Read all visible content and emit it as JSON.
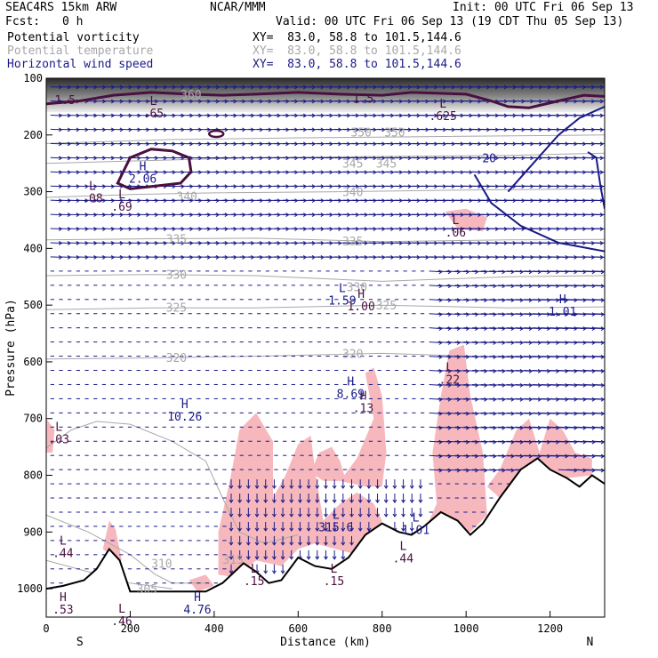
{
  "header": {
    "model": "SEAC4RS 15km ARW",
    "org": "NCAR/MMM",
    "init": "Init: 00 UTC Fri 06 Sep 13",
    "fcst_label": "Fcst:",
    "fcst_value": "0 h",
    "valid": "Valid: 00 UTC Fri 06 Sep 13 (19 CDT Thu 05 Sep 13)",
    "fields": [
      {
        "name": "Potential vorticity",
        "xy": "XY=  83.0, 58.8 to 101.5,144.6",
        "color": "#000000"
      },
      {
        "name": "Potential temperature",
        "xy": "XY=  83.0, 58.8 to 101.5,144.6",
        "color": "#a8a8a8"
      },
      {
        "name": "Horizontal wind speed",
        "xy": "XY=  83.0, 58.8 to 101.5,144.6",
        "color": "#1a1a8a"
      }
    ]
  },
  "chart_data": {
    "type": "cross-section",
    "xlabel": "Distance (km)",
    "ylabel": "Pressure (hPa)",
    "xlim": [
      0,
      1330
    ],
    "ylim_hpa": [
      1050,
      100
    ],
    "x_ticks": [
      0,
      200,
      400,
      600,
      800,
      1000,
      1200
    ],
    "y_ticks": [
      100,
      200,
      300,
      400,
      500,
      600,
      700,
      800,
      900,
      1000
    ],
    "x_end_labels": {
      "left": "S",
      "right": "N"
    },
    "colors": {
      "pv": "#4a1040",
      "theta": "#a8a8a8",
      "wind": "#1a1a8a",
      "shade": "#f6b8bc",
      "terrain": "#000000"
    },
    "theta_levels": [
      305,
      310,
      315,
      320,
      325,
      330,
      335,
      340,
      345,
      350
    ],
    "theta_labels": [
      {
        "text": "360",
        "x": 345,
        "p": 128
      },
      {
        "text": "350",
        "x": 750,
        "p": 195
      },
      {
        "text": "350",
        "x": 830,
        "p": 195
      },
      {
        "text": "345",
        "x": 730,
        "p": 250
      },
      {
        "text": "345",
        "x": 810,
        "p": 250
      },
      {
        "text": "340",
        "x": 335,
        "p": 308
      },
      {
        "text": "340",
        "x": 730,
        "p": 300
      },
      {
        "text": "335",
        "x": 310,
        "p": 383
      },
      {
        "text": "335",
        "x": 730,
        "p": 387
      },
      {
        "text": "330",
        "x": 310,
        "p": 446
      },
      {
        "text": "330",
        "x": 740,
        "p": 468
      },
      {
        "text": "325",
        "x": 310,
        "p": 504
      },
      {
        "text": "325",
        "x": 810,
        "p": 500
      },
      {
        "text": "320",
        "x": 310,
        "p": 592
      },
      {
        "text": "320",
        "x": 730,
        "p": 585
      },
      {
        "text": "315",
        "x": 445,
        "p": 948
      },
      {
        "text": "310",
        "x": 275,
        "p": 955
      },
      {
        "text": "305",
        "x": 240,
        "p": 1000
      }
    ],
    "pv_labels": [
      {
        "text": "1.5",
        "x": 45,
        "p": 138
      },
      {
        "text": "1.5",
        "x": 755,
        "p": 135
      },
      {
        "text": "20",
        "x": 1055,
        "p": 240
      }
    ],
    "extrema": [
      {
        "type": "L",
        "value": ".65",
        "x": 255,
        "p": 150
      },
      {
        "type": "H",
        "value": "2.06",
        "x": 230,
        "p": 265
      },
      {
        "type": "L",
        "value": ".08",
        "x": 110,
        "p": 300
      },
      {
        "type": "L",
        "value": ".69",
        "x": 180,
        "p": 315
      },
      {
        "type": "L",
        "value": ".625",
        "x": 945,
        "p": 155
      },
      {
        "type": "L",
        "value": ".06",
        "x": 975,
        "p": 360
      },
      {
        "type": "L",
        "value": "1.59",
        "x": 705,
        "p": 480
      },
      {
        "type": "H",
        "value": "1.00",
        "x": 750,
        "p": 490
      },
      {
        "type": "H",
        "value": "1.01",
        "x": 1230,
        "p": 500
      },
      {
        "type": "H",
        "value": "8.69",
        "x": 725,
        "p": 645
      },
      {
        "type": "H",
        "value": ".13",
        "x": 755,
        "p": 670
      },
      {
        "type": "L",
        "value": ".22",
        "x": 960,
        "p": 620
      },
      {
        "type": "H",
        "value": "10.26",
        "x": 330,
        "p": 685
      },
      {
        "type": "L",
        "value": ".03",
        "x": 30,
        "p": 725
      },
      {
        "type": "L",
        "value": "315.6",
        "x": 690,
        "p": 880
      },
      {
        "type": "L",
        "value": "1.01",
        "x": 880,
        "p": 885
      },
      {
        "type": "L",
        "value": ".44",
        "x": 40,
        "p": 925
      },
      {
        "type": "L",
        "value": ".44",
        "x": 850,
        "p": 935
      },
      {
        "type": "L",
        "value": ".15",
        "x": 495,
        "p": 975
      },
      {
        "type": "L",
        "value": ".15",
        "x": 685,
        "p": 975
      },
      {
        "type": "H",
        "value": ".53",
        "x": 40,
        "p": 1025
      },
      {
        "type": "H",
        "value": "4.76",
        "x": 360,
        "p": 1025
      },
      {
        "type": "L",
        "value": ".46",
        "x": 180,
        "p": 1045
      }
    ]
  }
}
